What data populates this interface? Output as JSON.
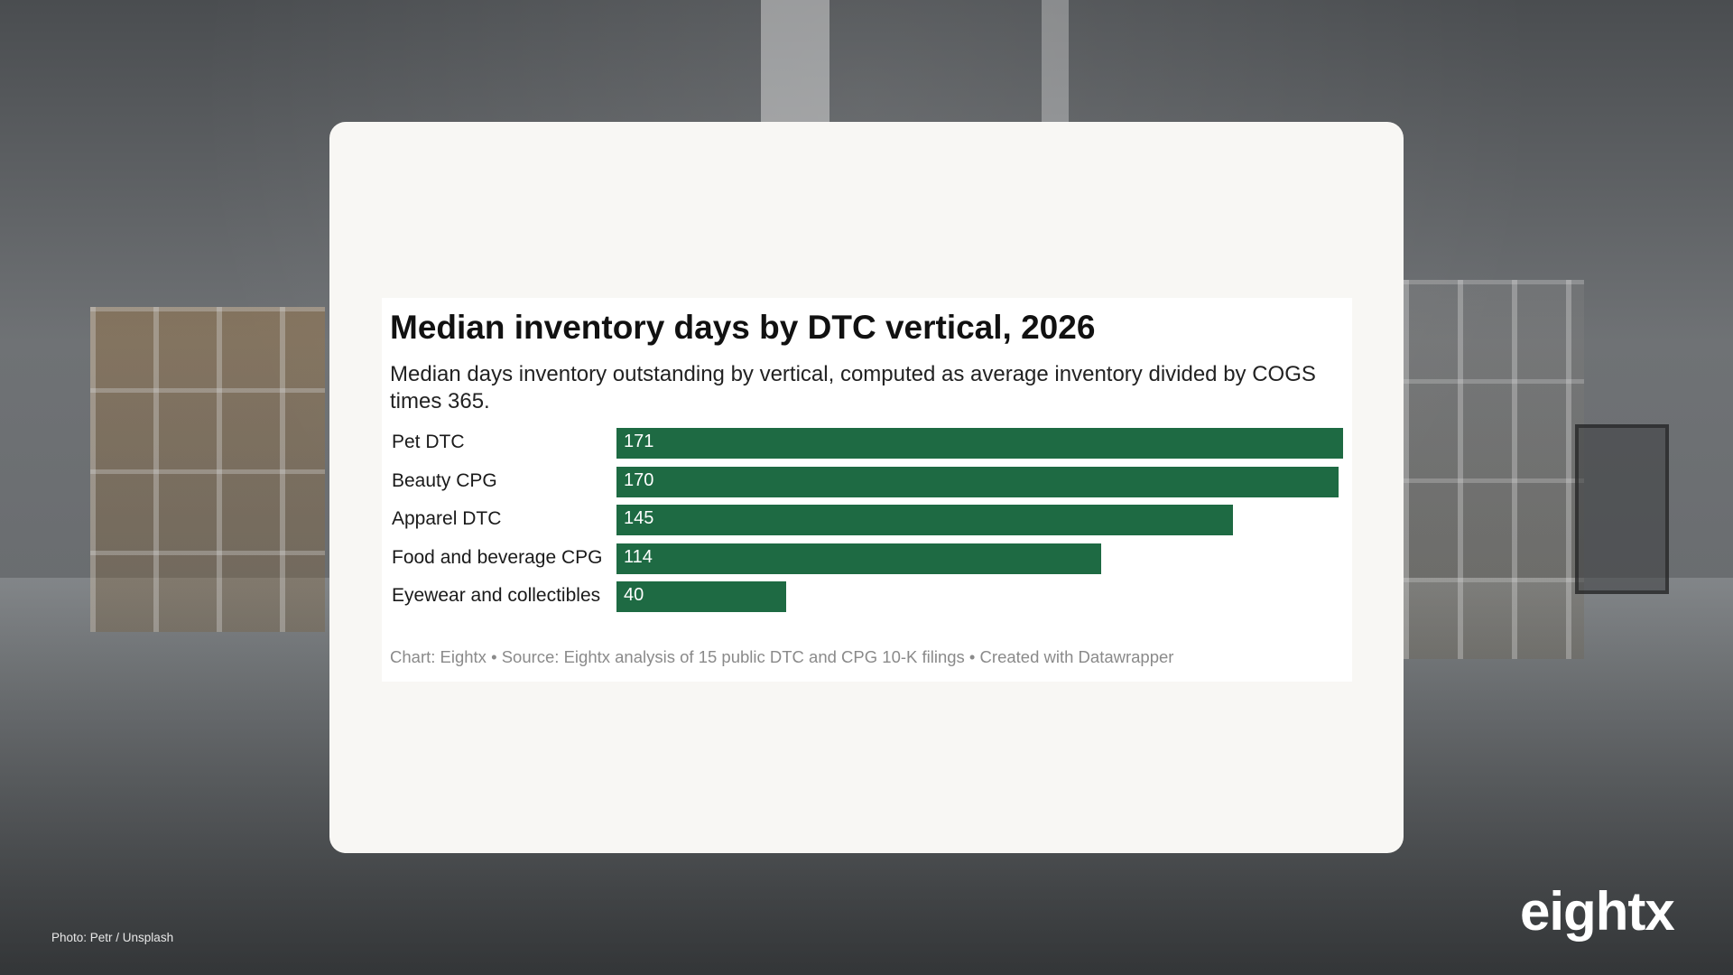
{
  "photo_credit": "Photo: Petr / Unsplash",
  "logo_text": "eightx",
  "chart_data": {
    "type": "bar",
    "orientation": "horizontal",
    "title": "Median inventory days by DTC vertical, 2026",
    "subtitle": "Median days inventory outstanding by vertical, computed as average inventory divided by COGS times 365.",
    "categories": [
      "Pet DTC",
      "Beauty CPG",
      "Apparel DTC",
      "Food and beverage CPG",
      "Eyewear and collectibles"
    ],
    "values": [
      171,
      170,
      145,
      114,
      40
    ],
    "xlim": [
      0,
      171
    ],
    "bar_color": "#1e6a43",
    "grid": false,
    "footer": "Chart: Eightx • Source: Eightx analysis of 15 public DTC and CPG 10-K filings • Created with Datawrapper"
  }
}
